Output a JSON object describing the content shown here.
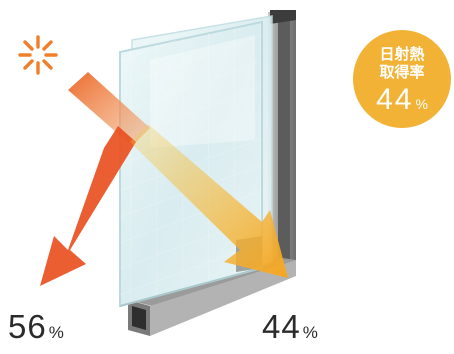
{
  "badge": {
    "line1": "日射熱",
    "line2": "取得率",
    "value": "44",
    "unit": "%"
  },
  "labels": {
    "left": {
      "value": "56",
      "unit": "%"
    },
    "right": {
      "value": "44",
      "unit": "%"
    }
  },
  "colors": {
    "sun": "#f07f2b",
    "reflected_arrow": "#e9501f",
    "incoming_arrow": "#ec6b2d",
    "transmitted_arrow": "#f5a623",
    "badge": "#f2b235",
    "glass": "#dff0f2",
    "frame": "#9a9a9a",
    "text": "#2b2b2b"
  },
  "icons": [
    "sun-icon"
  ]
}
